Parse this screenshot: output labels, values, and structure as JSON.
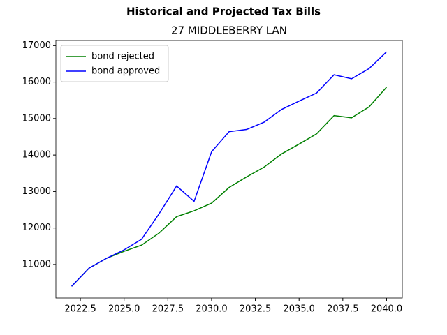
{
  "chart_data": {
    "type": "line",
    "suptitle": "Historical and Projected Tax Bills",
    "title": "27 MIDDLEBERRY LAN",
    "x": [
      2022,
      2023,
      2024,
      2025,
      2026,
      2027,
      2028,
      2029,
      2030,
      2031,
      2032,
      2033,
      2034,
      2035,
      2036,
      2037,
      2038,
      2039,
      2040
    ],
    "series": [
      {
        "name": "bond rejected",
        "color": "#008000",
        "values": [
          10400,
          10900,
          11170,
          11360,
          11530,
          11860,
          12310,
          12470,
          12680,
          13110,
          13400,
          13670,
          14030,
          14300,
          14580,
          15080,
          15020,
          15320,
          15860
        ]
      },
      {
        "name": "bond approved",
        "color": "#0000ff",
        "values": [
          10400,
          10900,
          11170,
          11400,
          11690,
          12390,
          13150,
          12730,
          14090,
          14640,
          14700,
          14900,
          15250,
          15480,
          15700,
          16200,
          16090,
          16370,
          16830
        ]
      }
    ],
    "xlim": [
      2021.1,
      2040.9
    ],
    "ylim": [
      10080,
      17140
    ],
    "xticks": [
      2022.5,
      {
        "value": 2025,
        "label": "2025.0"
      },
      2027.5,
      {
        "value": 2030,
        "label": "2030.0"
      },
      2032.5,
      {
        "value": 2035,
        "label": "2035.0"
      },
      2037.5,
      {
        "value": 2040,
        "label": "2040.0"
      }
    ],
    "yticks": [
      11000,
      12000,
      13000,
      14000,
      15000,
      16000,
      17000
    ],
    "legend": "upper left"
  }
}
